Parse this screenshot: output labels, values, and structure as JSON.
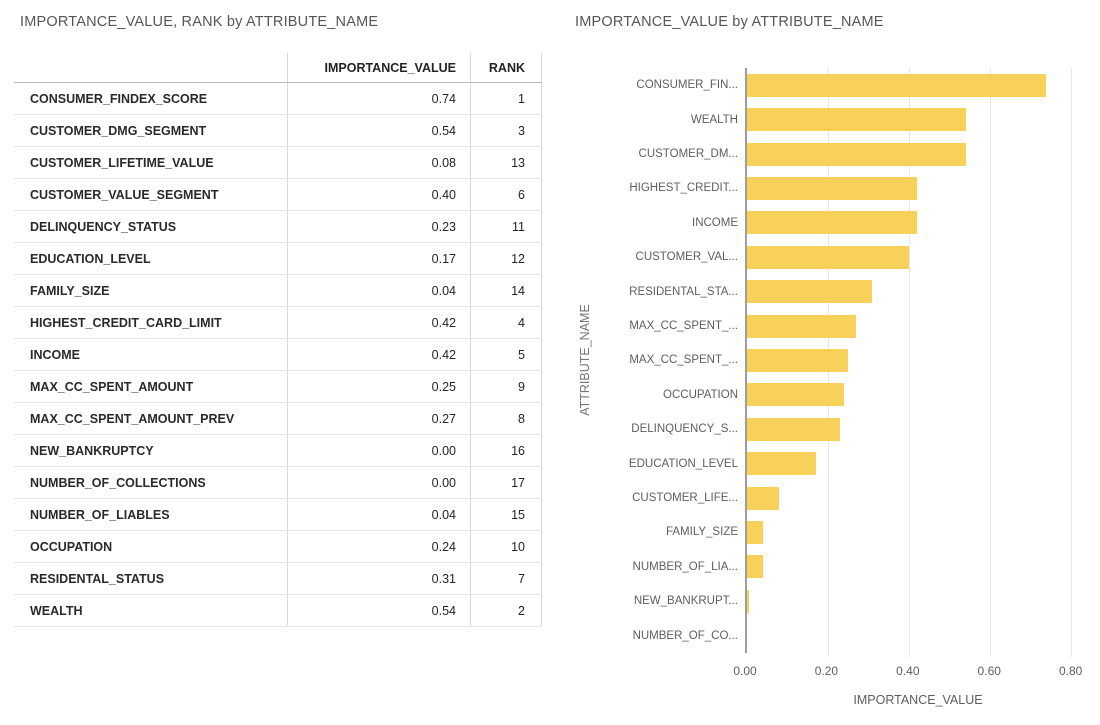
{
  "table_visual": {
    "title": "IMPORTANCE_VALUE, RANK by ATTRIBUTE_NAME",
    "columns": {
      "attribute": "",
      "importance_value": "IMPORTANCE_VALUE",
      "rank": "RANK"
    },
    "rows": [
      {
        "name": "CONSUMER_FINDEX_SCORE",
        "importance_value": "0.74",
        "rank": "1"
      },
      {
        "name": "CUSTOMER_DMG_SEGMENT",
        "importance_value": "0.54",
        "rank": "3"
      },
      {
        "name": "CUSTOMER_LIFETIME_VALUE",
        "importance_value": "0.08",
        "rank": "13"
      },
      {
        "name": "CUSTOMER_VALUE_SEGMENT",
        "importance_value": "0.40",
        "rank": "6"
      },
      {
        "name": "DELINQUENCY_STATUS",
        "importance_value": "0.23",
        "rank": "11"
      },
      {
        "name": "EDUCATION_LEVEL",
        "importance_value": "0.17",
        "rank": "12"
      },
      {
        "name": "FAMILY_SIZE",
        "importance_value": "0.04",
        "rank": "14"
      },
      {
        "name": "HIGHEST_CREDIT_CARD_LIMIT",
        "importance_value": "0.42",
        "rank": "4"
      },
      {
        "name": "INCOME",
        "importance_value": "0.42",
        "rank": "5"
      },
      {
        "name": "MAX_CC_SPENT_AMOUNT",
        "importance_value": "0.25",
        "rank": "9"
      },
      {
        "name": "MAX_CC_SPENT_AMOUNT_PREV",
        "importance_value": "0.27",
        "rank": "8"
      },
      {
        "name": "NEW_BANKRUPTCY",
        "importance_value": "0.00",
        "rank": "16"
      },
      {
        "name": "NUMBER_OF_COLLECTIONS",
        "importance_value": "0.00",
        "rank": "17"
      },
      {
        "name": "NUMBER_OF_LIABLES",
        "importance_value": "0.04",
        "rank": "15"
      },
      {
        "name": "OCCUPATION",
        "importance_value": "0.24",
        "rank": "10"
      },
      {
        "name": "RESIDENTAL_STATUS",
        "importance_value": "0.31",
        "rank": "7"
      },
      {
        "name": "WEALTH",
        "importance_value": "0.54",
        "rank": "2"
      }
    ]
  },
  "chart_visual": {
    "title": "IMPORTANCE_VALUE by ATTRIBUTE_NAME"
  },
  "chart_data": {
    "type": "bar",
    "orientation": "horizontal",
    "title": "IMPORTANCE_VALUE by ATTRIBUTE_NAME",
    "xlabel": "IMPORTANCE_VALUE",
    "ylabel": "ATTRIBUTE_NAME",
    "categories": [
      "CONSUMER_FIN...",
      "WEALTH",
      "CUSTOMER_DM...",
      "HIGHEST_CREDIT...",
      "INCOME",
      "CUSTOMER_VAL...",
      "RESIDENTAL_STA...",
      "MAX_CC_SPENT_...",
      "MAX_CC_SPENT_...",
      "OCCUPATION",
      "DELINQUENCY_S...",
      "EDUCATION_LEVEL",
      "CUSTOMER_LIFE...",
      "FAMILY_SIZE",
      "NUMBER_OF_LIA...",
      "NEW_BANKRUPT...",
      "NUMBER_OF_CO..."
    ],
    "values": [
      0.74,
      0.54,
      0.54,
      0.42,
      0.42,
      0.4,
      0.31,
      0.27,
      0.25,
      0.24,
      0.23,
      0.17,
      0.08,
      0.04,
      0.04,
      0.005,
      0
    ],
    "xlim": [
      0,
      0.8
    ],
    "plot_max": 0.85,
    "x_ticks": [
      {
        "label": "0.00",
        "value": 0
      },
      {
        "label": "0.20",
        "value": 0.2
      },
      {
        "label": "0.40",
        "value": 0.4
      },
      {
        "label": "0.60",
        "value": 0.6
      },
      {
        "label": "0.80",
        "value": 0.8
      }
    ],
    "gridlines": [
      0.2,
      0.4,
      0.6,
      0.8
    ],
    "grid": true,
    "legend": "none",
    "bar_color": "#F7D15A"
  }
}
